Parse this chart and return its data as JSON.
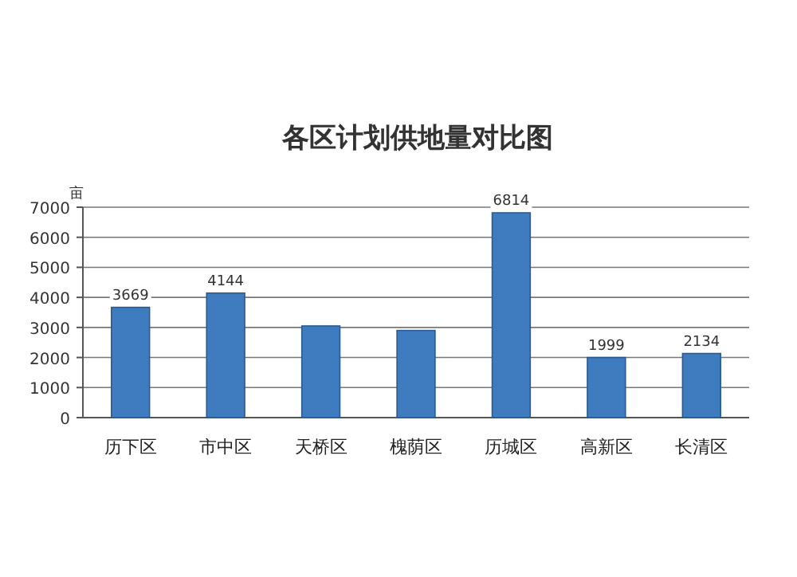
{
  "chart_data": {
    "type": "bar",
    "title": "各区计划供地量对比图",
    "ylabel": "亩",
    "categories": [
      "历下区",
      "市中区",
      "天桥区",
      "槐荫区",
      "历城区",
      "高新区",
      "长清区"
    ],
    "values": [
      3669,
      4144,
      3050,
      2900,
      6814,
      1999,
      2134
    ],
    "value_labels": [
      "3669",
      "4144",
      null,
      null,
      "6814",
      "1999",
      "2134"
    ],
    "color": "#3f7cbf",
    "ylim": [
      0,
      7000
    ],
    "yticks": [
      0,
      1000,
      2000,
      3000,
      4000,
      5000,
      6000,
      7000
    ],
    "grid": "y"
  }
}
